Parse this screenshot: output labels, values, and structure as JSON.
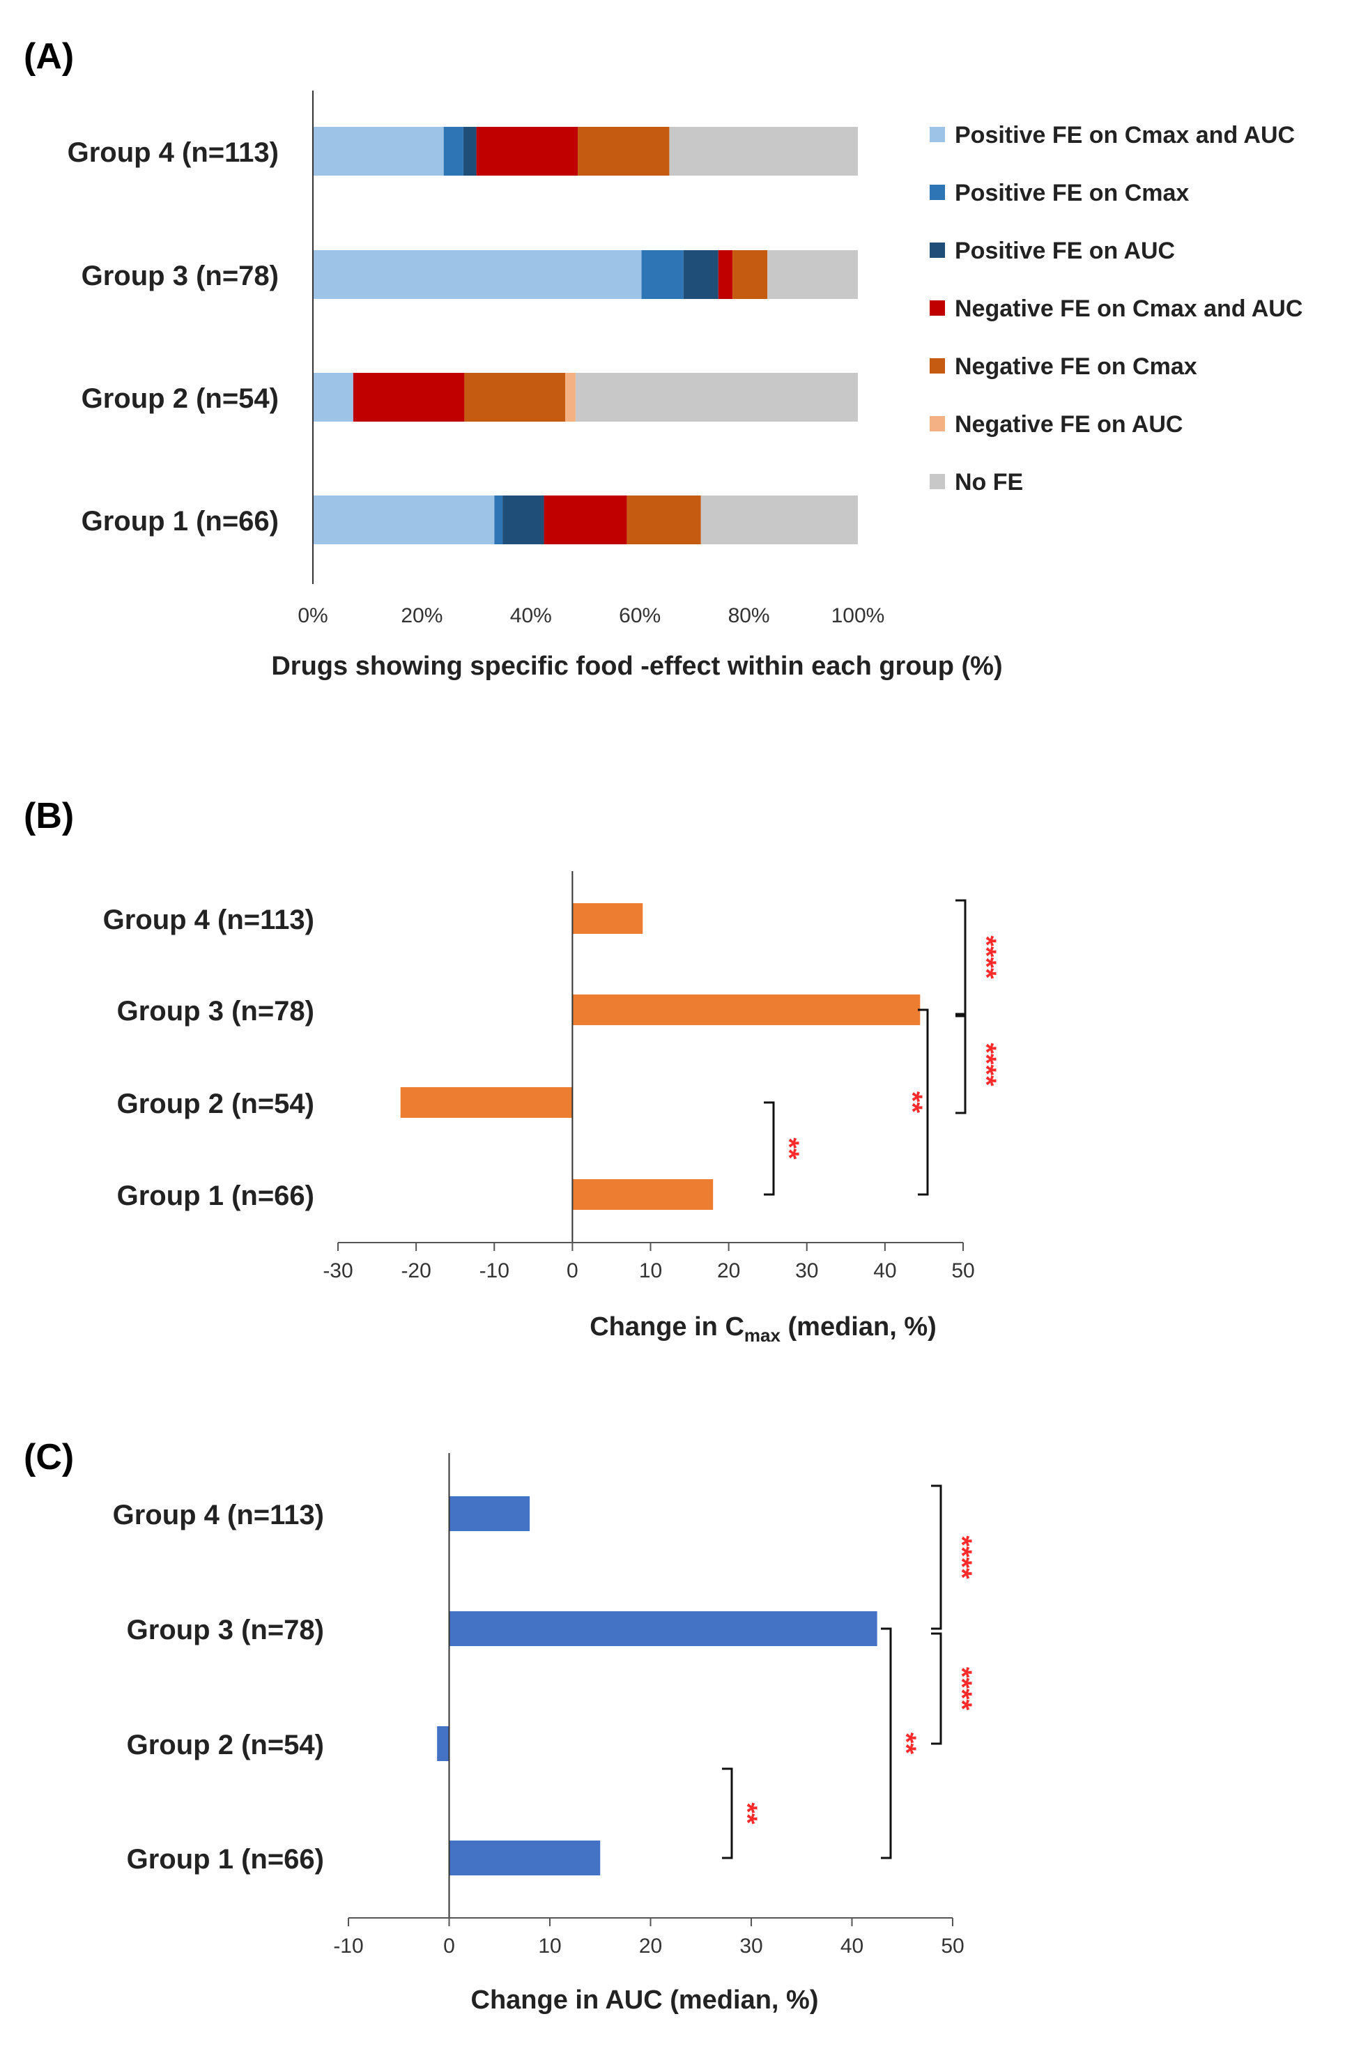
{
  "figure": {
    "panel_labels": [
      "(A)",
      "(B)",
      "(C)"
    ]
  },
  "chart_data": [
    {
      "panel": "(A)",
      "type": "bar",
      "orientation": "horizontal",
      "stacked": true,
      "categories": [
        "Group 4 (n=113)",
        "Group 3 (n=78)",
        "Group 2 (n=54)",
        "Group 1 (n=66)"
      ],
      "series": [
        {
          "name": "Positive FE on Cmax and AUC",
          "color": "#9dc3e6",
          "values": [
            24,
            60.3,
            7.4,
            33.3
          ]
        },
        {
          "name": "Positive FE on Cmax",
          "color": "#2e75b6",
          "values": [
            3.6,
            7.7,
            0,
            1.5
          ]
        },
        {
          "name": "Positive FE on AUC",
          "color": "#1f4e79",
          "values": [
            2.4,
            6.4,
            0,
            7.6
          ]
        },
        {
          "name": "Negative FE on Cmax and AUC",
          "color": "#c00000",
          "values": [
            18.6,
            2.6,
            20.4,
            15.2
          ]
        },
        {
          "name": "Negative FE on Cmax",
          "color": "#c55a11",
          "values": [
            16.8,
            6.4,
            18.5,
            13.6
          ]
        },
        {
          "name": "Negative FE on AUC",
          "color": "#f4b183",
          "values": [
            0,
            0,
            1.9,
            0
          ]
        },
        {
          "name": "No FE",
          "color": "#c8c8c8",
          "values": [
            34.6,
            16.6,
            51.8,
            28.8
          ]
        }
      ],
      "xlim": [
        0,
        100
      ],
      "xticks": [
        "0%",
        "20%",
        "40%",
        "60%",
        "80%",
        "100%"
      ],
      "xlabel": "Drugs showing specific food -effect within each group (%)",
      "legend_position": "right"
    },
    {
      "panel": "(B)",
      "type": "bar",
      "orientation": "horizontal",
      "categories": [
        "Group 4 (n=113)",
        "Group 3 (n=78)",
        "Group 2 (n=54)",
        "Group 1 (n=66)"
      ],
      "values": [
        9,
        44.5,
        -22,
        18
      ],
      "color": "#ed7d31",
      "xlim": [
        -30,
        50
      ],
      "xticks": [
        "-30",
        "-20",
        "-10",
        "0",
        "10",
        "20",
        "30",
        "40",
        "50"
      ],
      "xlabel_main": "Change in C",
      "xlabel_sub": "max",
      "xlabel_tail": " (median, %)",
      "significance": [
        {
          "from": "Group 4 (n=113)",
          "to": "Group 3 (n=78)",
          "stars": "****"
        },
        {
          "from": "Group 3 (n=78)",
          "to": "Group 2 (n=54)",
          "stars": "****"
        },
        {
          "from": "Group 3 (n=78)",
          "to": "Group 1 (n=66)",
          "stars": "**"
        },
        {
          "from": "Group 2 (n=54)",
          "to": "Group 1 (n=66)",
          "stars": "**"
        }
      ]
    },
    {
      "panel": "(C)",
      "type": "bar",
      "orientation": "horizontal",
      "categories": [
        "Group 4 (n=113)",
        "Group 3 (n=78)",
        "Group 2 (n=54)",
        "Group 1 (n=66)"
      ],
      "values": [
        8,
        42.5,
        -1.2,
        15
      ],
      "color": "#4472c4",
      "xlim": [
        -10,
        50
      ],
      "xticks": [
        "-10",
        "0",
        "10",
        "20",
        "30",
        "40",
        "50"
      ],
      "xlabel": "Change in AUC (median, %)",
      "significance": [
        {
          "from": "Group 4 (n=113)",
          "to": "Group 3 (n=78)",
          "stars": "****"
        },
        {
          "from": "Group 3 (n=78)",
          "to": "Group 2 (n=54)",
          "stars": "****"
        },
        {
          "from": "Group 3 (n=78)",
          "to": "Group 1 (n=66)",
          "stars": "**"
        },
        {
          "from": "Group 2 (n=54)",
          "to": "Group 1 (n=66)",
          "stars": "**"
        }
      ]
    }
  ]
}
